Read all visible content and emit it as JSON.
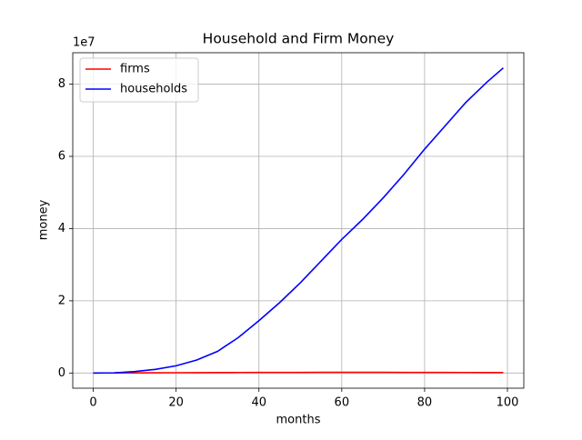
{
  "chart_data": {
    "type": "line",
    "title": "Household and Firm Money",
    "x_label": "months",
    "y_label": "money",
    "y_offset_label": "1e7",
    "x": [
      0,
      5,
      10,
      15,
      20,
      25,
      30,
      35,
      40,
      45,
      50,
      55,
      60,
      65,
      70,
      75,
      80,
      85,
      90,
      95,
      99
    ],
    "series": [
      {
        "name": "firms",
        "color": "#ff0000",
        "values": [
          0,
          0.002,
          0.004,
          0.006,
          0.008,
          0.01,
          0.012,
          0.014,
          0.015,
          0.016,
          0.017,
          0.018,
          0.018,
          0.018,
          0.018,
          0.017,
          0.016,
          0.015,
          0.014,
          0.013,
          0.012
        ]
      },
      {
        "name": "households",
        "color": "#0000ff",
        "values": [
          0,
          0.005,
          0.04,
          0.1,
          0.2,
          0.36,
          0.6,
          0.98,
          1.45,
          1.95,
          2.5,
          3.1,
          3.7,
          4.25,
          4.85,
          5.5,
          6.2,
          6.85,
          7.5,
          8.05,
          8.45
        ]
      }
    ],
    "xlim": [
      -4.95,
      103.95
    ],
    "ylim": [
      -0.42,
      8.87
    ],
    "xticks": [
      0,
      20,
      40,
      60,
      80,
      100
    ],
    "yticks": [
      0,
      2,
      4,
      6,
      8
    ],
    "grid": true,
    "legend": "upper-left"
  }
}
